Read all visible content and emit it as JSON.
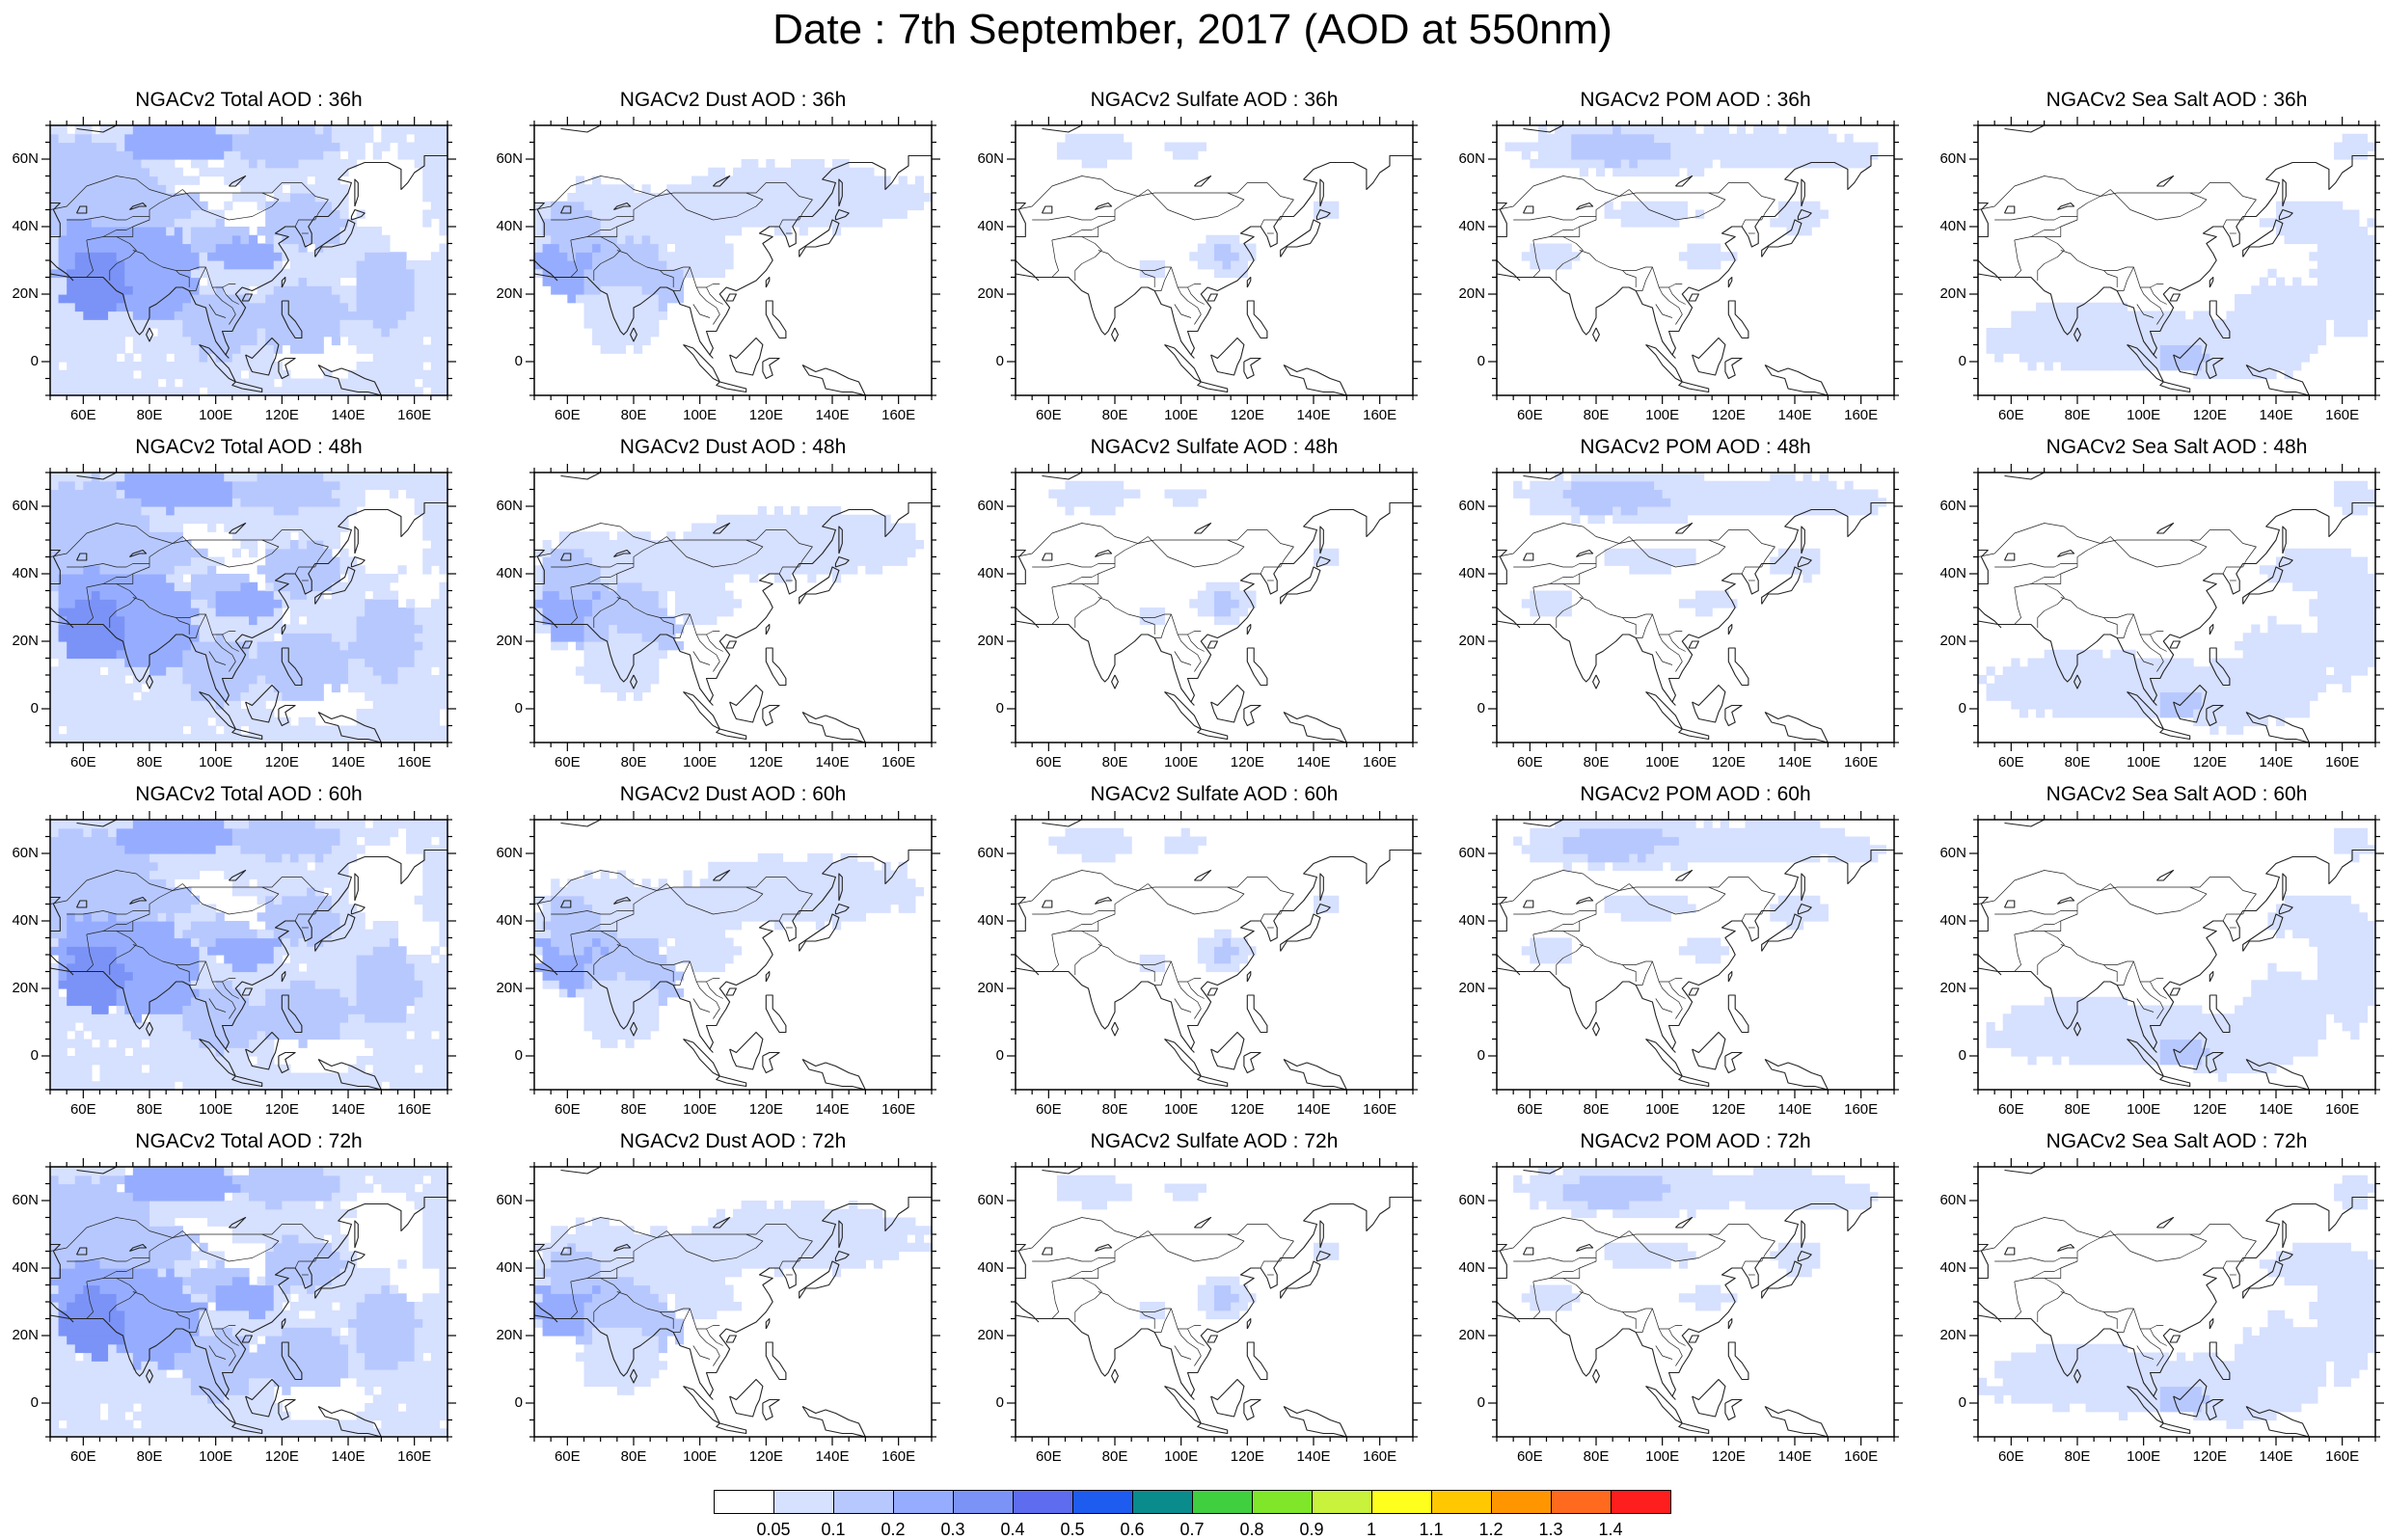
{
  "title": "Date : 7th September, 2017 (AOD at 550nm)",
  "lat_labels": [
    "60N",
    "40N",
    "20N",
    "0"
  ],
  "lon_labels": [
    "60E",
    "80E",
    "100E",
    "120E",
    "140E",
    "160E"
  ],
  "panels": [
    {
      "title": "NGACv2 Total AOD : 36h",
      "species": "total"
    },
    {
      "title": "NGACv2 Dust AOD : 36h",
      "species": "dust"
    },
    {
      "title": "NGACv2 Sulfate AOD : 36h",
      "species": "sulfate"
    },
    {
      "title": "NGACv2 POM AOD : 36h",
      "species": "pom"
    },
    {
      "title": "NGACv2 Sea Salt AOD : 36h",
      "species": "seasalt"
    },
    {
      "title": "NGACv2 Total AOD : 48h",
      "species": "total"
    },
    {
      "title": "NGACv2 Dust AOD : 48h",
      "species": "dust"
    },
    {
      "title": "NGACv2 Sulfate AOD : 48h",
      "species": "sulfate"
    },
    {
      "title": "NGACv2 POM AOD : 48h",
      "species": "pom"
    },
    {
      "title": "NGACv2 Sea Salt AOD : 48h",
      "species": "seasalt"
    },
    {
      "title": "NGACv2 Total AOD : 60h",
      "species": "total"
    },
    {
      "title": "NGACv2 Dust AOD : 60h",
      "species": "dust"
    },
    {
      "title": "NGACv2 Sulfate AOD : 60h",
      "species": "sulfate"
    },
    {
      "title": "NGACv2 POM AOD : 60h",
      "species": "pom"
    },
    {
      "title": "NGACv2 Sea Salt AOD : 60h",
      "species": "seasalt"
    },
    {
      "title": "NGACv2 Total AOD : 72h",
      "species": "total"
    },
    {
      "title": "NGACv2 Dust AOD : 72h",
      "species": "dust"
    },
    {
      "title": "NGACv2 Sulfate AOD : 72h",
      "species": "sulfate"
    },
    {
      "title": "NGACv2 POM AOD : 72h",
      "species": "pom"
    },
    {
      "title": "NGACv2 Sea Salt  AOD : 72h",
      "species": "seasalt"
    }
  ],
  "colorbar": {
    "labels": [
      "0.05",
      "0.1",
      "0.2",
      "0.3",
      "0.4",
      "0.5",
      "0.6",
      "0.7",
      "0.8",
      "0.9",
      "1",
      "1.1",
      "1.2",
      "1.3",
      "1.4"
    ],
    "colors": [
      "#ffffff",
      "#d6e0ff",
      "#b7c8ff",
      "#96adff",
      "#7b93f7",
      "#5e6cf0",
      "#1e5cf0",
      "#0a8c8c",
      "#3fcf3f",
      "#7fe62a",
      "#c8f23c",
      "#ffff1e",
      "#ffc800",
      "#ff9600",
      "#ff6a1e",
      "#ff1e1e"
    ]
  },
  "plot_domain": {
    "lon_range": [
      50,
      170
    ],
    "lat_range": [
      -10,
      70
    ]
  }
}
